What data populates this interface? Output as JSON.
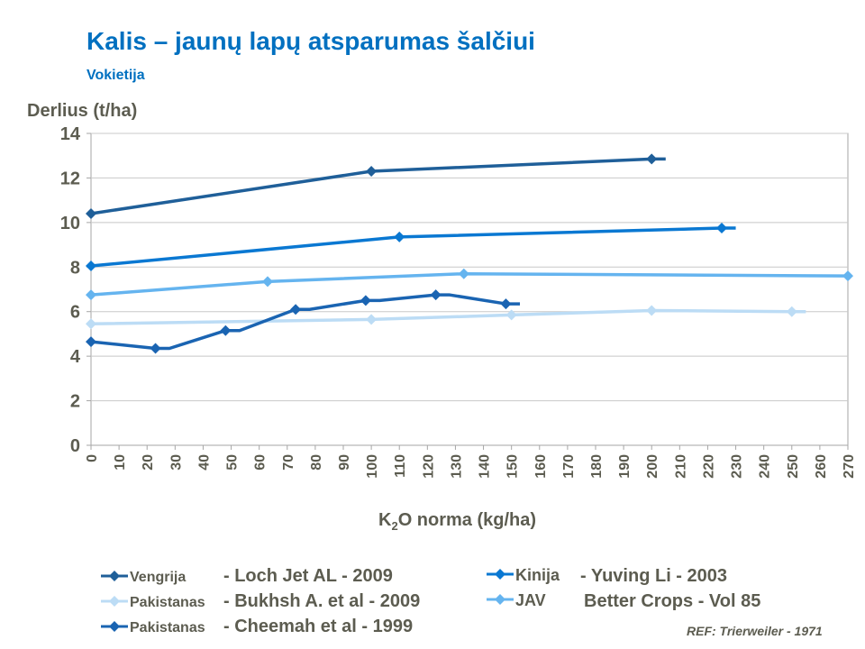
{
  "chart_data": {
    "type": "line",
    "title": "Kalis – jaunų lapų atsparumas šalčiui",
    "subtitle": "Vokietija",
    "ylabel": "Derlius (t/ha)",
    "xlabel_main": "K",
    "xlabel_sub": "2",
    "xlabel_rest": "O  norma (kg/ha)",
    "xlim": [
      0,
      270
    ],
    "ylim": [
      0,
      14
    ],
    "xticks": [
      0,
      10,
      20,
      30,
      40,
      50,
      60,
      70,
      80,
      90,
      100,
      110,
      120,
      130,
      140,
      150,
      160,
      170,
      180,
      190,
      200,
      210,
      220,
      230,
      240,
      250,
      260,
      270
    ],
    "yticks": [
      0,
      2,
      4,
      6,
      8,
      10,
      12,
      14
    ],
    "grid": true,
    "legend_position": "bottom",
    "series": [
      {
        "name": "Vengrija",
        "ref": "- Loch Jet AL - 2009",
        "color": "#1f5f99",
        "x": [
          0,
          100,
          200,
          205
        ],
        "y": [
          10.4,
          12.3,
          12.85,
          12.85
        ],
        "markers": [
          0,
          1,
          2
        ]
      },
      {
        "name": "Kinija",
        "ref": "- Yuving Li - 2003",
        "color": "#0a78d2",
        "x": [
          0,
          110,
          225,
          230
        ],
        "y": [
          8.05,
          9.35,
          9.75,
          9.75
        ],
        "markers": [
          0,
          1,
          2
        ]
      },
      {
        "name": "Pakistanas",
        "ref": "- Bukhsh A. et al - 2009",
        "color": "#bcdcf5",
        "x": [
          0,
          100,
          150,
          200,
          250,
          255
        ],
        "y": [
          5.45,
          5.65,
          5.85,
          6.05,
          6.0,
          6.0
        ],
        "markers": [
          0,
          1,
          2,
          3,
          4
        ]
      },
      {
        "name": "JAV",
        "ref": "Better Crops - Vol 85",
        "color": "#65b4ef",
        "x": [
          0,
          63,
          133,
          270
        ],
        "y": [
          6.75,
          7.35,
          7.7,
          7.6
        ],
        "markers": [
          0,
          1,
          2,
          3
        ]
      },
      {
        "name": "Pakistanas",
        "ref": "- Cheemah et al - 1999",
        "color": "#1a64b2",
        "x": [
          0,
          23,
          28,
          48,
          53,
          73,
          78,
          98,
          103,
          123,
          128,
          148,
          153
        ],
        "y": [
          4.65,
          4.35,
          4.35,
          5.15,
          5.15,
          6.1,
          6.1,
          6.5,
          6.5,
          6.75,
          6.75,
          6.35,
          6.35
        ],
        "markers": [
          0,
          1,
          3,
          5,
          7,
          9,
          11
        ]
      }
    ]
  },
  "ref_note": "REF: Trierweiler - 1971"
}
